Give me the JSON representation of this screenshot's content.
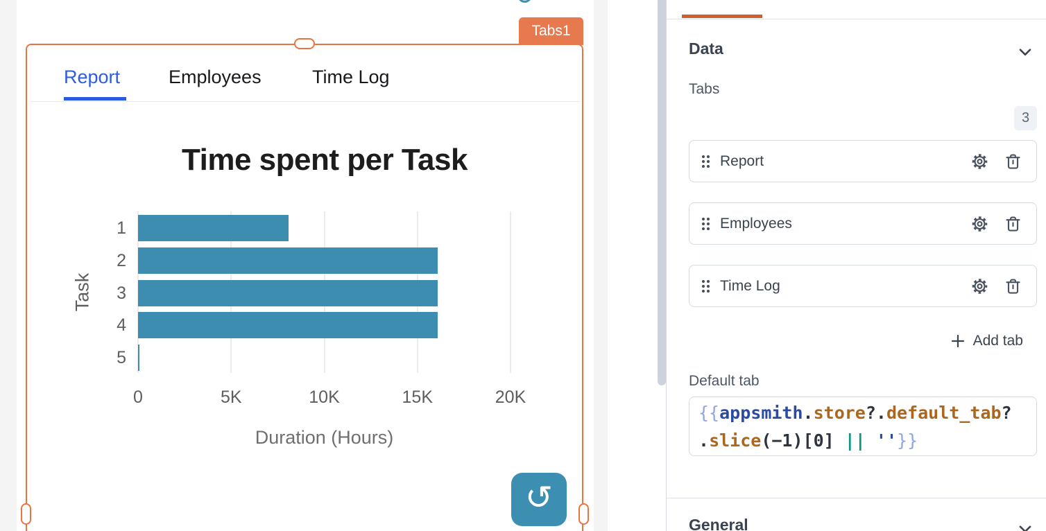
{
  "canvas": {
    "widget_name_badge": "Tabs1",
    "widget_tabs": [
      {
        "label": "Report",
        "active": true
      },
      {
        "label": "Employees",
        "active": false
      },
      {
        "label": "Time Log",
        "active": false
      }
    ],
    "refresh_button_color": "#3d8fb2",
    "selection_accent_color": "#e87442",
    "active_tab_text_color": "#2b5ce1"
  },
  "chart_data": {
    "type": "bar",
    "orientation": "horizontal",
    "title": "Time spent per Task",
    "categories": [
      "1",
      "2",
      "3",
      "4",
      "5"
    ],
    "values": [
      8100,
      16100,
      16100,
      16100,
      50
    ],
    "xlabel": "Duration (Hours)",
    "ylabel": "Task",
    "xlim": [
      0,
      20000
    ],
    "xticks": [
      {
        "v": 0,
        "label": "0"
      },
      {
        "v": 5000,
        "label": "5K"
      },
      {
        "v": 10000,
        "label": "10K"
      },
      {
        "v": 15000,
        "label": "15K"
      },
      {
        "v": 20000,
        "label": "20K"
      }
    ],
    "bar_color": "#3d8db0",
    "grid": true,
    "legend": false
  },
  "property_pane": {
    "active_tab_indicator_color": "#ce5f2e",
    "data_section": {
      "title": "Data",
      "tabs_field_label": "Tabs",
      "tabs_count": "3",
      "tab_items": [
        {
          "label": "Report"
        },
        {
          "label": "Employees"
        },
        {
          "label": "Time Log"
        }
      ],
      "add_tab_label": "Add tab",
      "default_tab_label": "Default tab",
      "default_tab_code": {
        "full_text": "{{appsmith.store?.default_tab?.slice(-1)[0] || ''}}",
        "lines": [
          [
            {
              "t": "{{",
              "c": "brace"
            },
            {
              "t": "appsmith",
              "c": "ident"
            },
            {
              "t": ".",
              "c": "plain"
            },
            {
              "t": "store",
              "c": "prop"
            },
            {
              "t": "?.",
              "c": "plain"
            },
            {
              "t": "default_tab",
              "c": "prop"
            },
            {
              "t": "?",
              "c": "plain"
            }
          ],
          [
            {
              "t": ".",
              "c": "plain"
            },
            {
              "t": "slice",
              "c": "prop"
            },
            {
              "t": "(−1)[0]",
              "c": "plain"
            },
            {
              "t": " ",
              "c": "plain"
            },
            {
              "t": "||",
              "c": "op"
            },
            {
              "t": " ",
              "c": "plain"
            },
            {
              "t": "''",
              "c": "str"
            },
            {
              "t": "}}",
              "c": "brace"
            }
          ]
        ]
      }
    },
    "general_section": {
      "title": "General"
    }
  }
}
